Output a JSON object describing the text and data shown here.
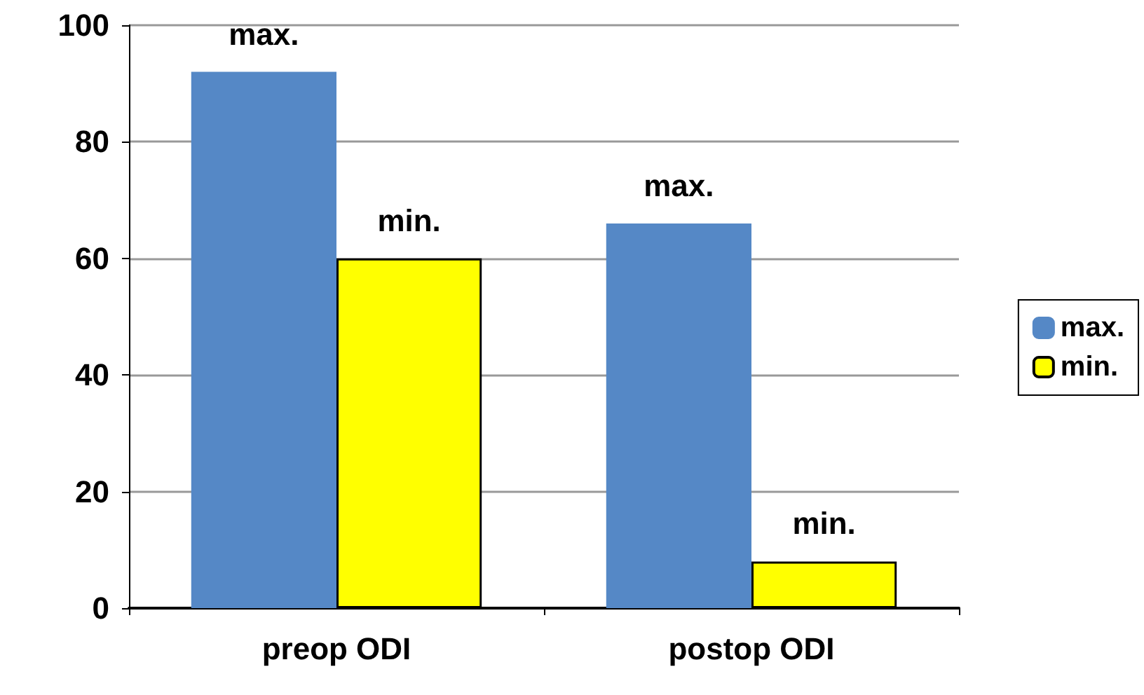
{
  "chart_data": {
    "type": "bar",
    "categories": [
      "preop ODI",
      "postop ODI"
    ],
    "series": [
      {
        "name": "max.",
        "color": "#5588c6",
        "values": [
          92,
          66
        ],
        "value_labels": [
          "max.",
          "max."
        ]
      },
      {
        "name": "min.",
        "color": "#ffff00",
        "values": [
          60,
          8
        ],
        "value_labels": [
          "min.",
          "min."
        ]
      }
    ],
    "ylim": [
      0,
      100
    ],
    "yticks": [
      0,
      20,
      40,
      60,
      80,
      100
    ],
    "grid": "y",
    "legend": "right"
  }
}
